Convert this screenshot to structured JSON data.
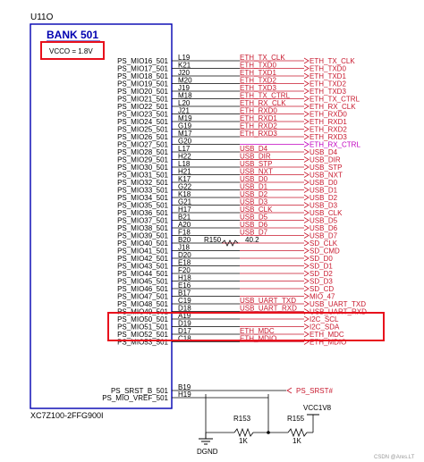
{
  "part": {
    "ref": "U11O",
    "bank": "BANK 501",
    "vcco": "VCCO = 1.8V",
    "part_number": "XC7Z100-2FFG900I"
  },
  "pins": [
    {
      "pin": "PS_MIO16_501",
      "ball": "L19",
      "net": "ETH_TX_CLK",
      "port": "ETH_TX_CLK",
      "color": "#c8192e"
    },
    {
      "pin": "PS_MIO17_501",
      "ball": "K21",
      "net": "ETH_TXD0",
      "port": "ETH_TXD0",
      "color": "#c8192e"
    },
    {
      "pin": "PS_MIO18_501",
      "ball": "J20",
      "net": "ETH_TXD1",
      "port": "ETH_TXD1",
      "color": "#c8192e"
    },
    {
      "pin": "PS_MIO19_501",
      "ball": "M20",
      "net": "ETH_TXD2",
      "port": "ETH_TXD2",
      "color": "#c8192e"
    },
    {
      "pin": "PS_MIO20_501",
      "ball": "J19",
      "net": "ETH_TXD3",
      "port": "ETH_TXD3",
      "color": "#c8192e"
    },
    {
      "pin": "PS_MIO21_501",
      "ball": "M18",
      "net": "ETH_TX_CTRL",
      "port": "ETH_TX_CTRL",
      "color": "#c8192e"
    },
    {
      "pin": "PS_MIO22_501",
      "ball": "L20",
      "net": "ETH_RX_CLK",
      "port": "ETH_RX_CLK",
      "color": "#c8192e"
    },
    {
      "pin": "PS_MIO23_501",
      "ball": "J21",
      "net": "ETH_RXD0",
      "port": "ETH_RXD0",
      "color": "#c8192e"
    },
    {
      "pin": "PS_MIO24_501",
      "ball": "M19",
      "net": "ETH_RXD1",
      "port": "ETH_RXD1",
      "color": "#c8192e"
    },
    {
      "pin": "PS_MIO25_501",
      "ball": "G19",
      "net": "ETH_RXD2",
      "port": "ETH_RXD2",
      "color": "#c8192e"
    },
    {
      "pin": "PS_MIO26_501",
      "ball": "M17",
      "net": "ETH_RXD3",
      "port": "ETH_RXD3",
      "color": "#c8192e"
    },
    {
      "pin": "PS_MIO27_501",
      "ball": "G20",
      "net": "",
      "port": "ETH_RX_CTRL",
      "color": "#c000c0"
    },
    {
      "pin": "PS_MIO28_501",
      "ball": "L17",
      "net": "USB_D4",
      "port": "USB_D4",
      "color": "#c8192e"
    },
    {
      "pin": "PS_MIO29_501",
      "ball": "H22",
      "net": "USB_DIR",
      "port": "USB_DIR",
      "color": "#c8192e"
    },
    {
      "pin": "PS_MIO30_501",
      "ball": "L18",
      "net": "USB_STP",
      "port": "USB_STP",
      "color": "#c8192e"
    },
    {
      "pin": "PS_MIO31_501",
      "ball": "H21",
      "net": "USB_NXT",
      "port": "USB_NXT",
      "color": "#c8192e"
    },
    {
      "pin": "PS_MIO32_501",
      "ball": "K17",
      "net": "USB_D0",
      "port": "USB_D0",
      "color": "#c8192e"
    },
    {
      "pin": "PS_MIO33_501",
      "ball": "G22",
      "net": "USB_D1",
      "port": "USB_D1",
      "color": "#c8192e"
    },
    {
      "pin": "PS_MIO34_501",
      "ball": "K18",
      "net": "USB_D2",
      "port": "USB_D2",
      "color": "#c8192e"
    },
    {
      "pin": "PS_MIO35_501",
      "ball": "G21",
      "net": "USB_D3",
      "port": "USB_D3",
      "color": "#c8192e"
    },
    {
      "pin": "PS_MIO36_501",
      "ball": "H17",
      "net": "USB_CLK",
      "port": "USB_CLK",
      "color": "#c8192e"
    },
    {
      "pin": "PS_MIO37_501",
      "ball": "B21",
      "net": "USB_D5",
      "port": "USB_D5",
      "color": "#c8192e"
    },
    {
      "pin": "PS_MIO38_501",
      "ball": "A20",
      "net": "USB_D6",
      "port": "USB_D6",
      "color": "#c8192e"
    },
    {
      "pin": "PS_MIO39_501",
      "ball": "F18",
      "net": "USB_D7",
      "port": "USB_D7",
      "color": "#c8192e"
    },
    {
      "pin": "PS_MIO40_501",
      "ball": "B20",
      "net": "",
      "port": "SD_CLK",
      "color": "#c8192e",
      "resistor": {
        "ref": "R150",
        "value": "40.2"
      }
    },
    {
      "pin": "PS_MIO41_501",
      "ball": "J18",
      "net": "",
      "port": "SD_CMD",
      "color": "#c8192e"
    },
    {
      "pin": "PS_MIO42_501",
      "ball": "D20",
      "net": "",
      "port": "SD_D0",
      "color": "#c8192e"
    },
    {
      "pin": "PS_MIO43_501",
      "ball": "E18",
      "net": "",
      "port": "SD_D1",
      "color": "#c8192e"
    },
    {
      "pin": "PS_MIO44_501",
      "ball": "F20",
      "net": "",
      "port": "SD_D2",
      "color": "#c8192e"
    },
    {
      "pin": "PS_MIO45_501",
      "ball": "H18",
      "net": "",
      "port": "SD_D3",
      "color": "#c8192e"
    },
    {
      "pin": "PS_MIO46_501",
      "ball": "E16",
      "net": "",
      "port": "SD_CD",
      "color": "#c8192e"
    },
    {
      "pin": "PS_MIO47_501",
      "ball": "B17",
      "net": "",
      "port": "MIO_47",
      "color": "#c8192e"
    },
    {
      "pin": "PS_MIO48_501",
      "ball": "C19",
      "net": "USB_UART_TXD",
      "port": "USB_UART_TXD",
      "color": "#c8192e"
    },
    {
      "pin": "PS_MIO49_501",
      "ball": "D18",
      "net": "USB_UART_RXD",
      "port": "USB_UART_RXD",
      "color": "#c8192e"
    },
    {
      "pin": "PS_MIO50_501",
      "ball": "A19",
      "net": "",
      "port": "I2C_SCL",
      "color": "#c8192e"
    },
    {
      "pin": "PS_MIO51_501",
      "ball": "D19",
      "net": "",
      "port": "I2C_SDA",
      "color": "#c8192e"
    },
    {
      "pin": "PS_MIO52_501",
      "ball": "D17",
      "net": "ETH_MDC",
      "port": "ETH_MDC",
      "color": "#c8192e"
    },
    {
      "pin": "PS_MIO53_501",
      "ball": "C18",
      "net": "ETH_MDIO",
      "port": "ETH_MDIO",
      "color": "#c8192e"
    }
  ],
  "extra_pins": [
    {
      "pin": "PS_SRST_B_501",
      "ball": "B19",
      "port": "PS_SRST#"
    },
    {
      "pin": "PS_MIO_VREF_501",
      "ball": "H19",
      "port": ""
    }
  ],
  "vref": {
    "r1": {
      "ref": "R153",
      "value": "1K"
    },
    "r2": {
      "ref": "R155",
      "value": "1K"
    },
    "power": "VCC1V8",
    "ground": "DGND"
  },
  "colors": {
    "wire": "#c8192e",
    "highlight": "#e8101c",
    "part_outline": "#0000b0",
    "ink": "#000000",
    "port_alt": "#c000c0"
  },
  "watermark": "CSDN @Ares.LT"
}
